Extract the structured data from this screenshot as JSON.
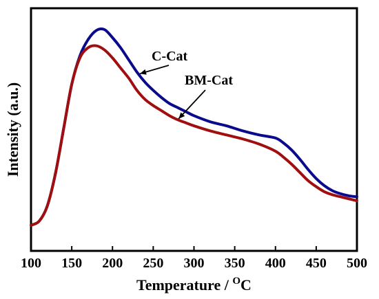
{
  "chart_data": {
    "type": "line",
    "xlabel": "Temperature / ",
    "xlabel_sup": "O",
    "xlabel_unit": "C",
    "ylabel": "Intensity (a.u.)",
    "xlim": [
      100,
      500
    ],
    "ylim": [
      0,
      1
    ],
    "xticks": [
      100,
      150,
      200,
      250,
      300,
      350,
      400,
      450,
      500
    ],
    "y_tick_labels": false,
    "grid": false,
    "series": [
      {
        "name": "C-Cat",
        "color": "#0a0a8c",
        "x": [
          100,
          110,
          120,
          130,
          140,
          150,
          160,
          170,
          180,
          190,
          200,
          210,
          220,
          230,
          240,
          250,
          260,
          270,
          280,
          290,
          300,
          320,
          340,
          360,
          380,
          400,
          410,
          420,
          430,
          440,
          450,
          460,
          470,
          480,
          490,
          500
        ],
        "y": [
          0.025,
          0.045,
          0.12,
          0.28,
          0.5,
          0.72,
          0.86,
          0.94,
          0.985,
          0.99,
          0.95,
          0.9,
          0.84,
          0.78,
          0.73,
          0.69,
          0.655,
          0.625,
          0.605,
          0.585,
          0.565,
          0.535,
          0.515,
          0.49,
          0.47,
          0.455,
          0.43,
          0.395,
          0.35,
          0.3,
          0.255,
          0.22,
          0.195,
          0.18,
          0.17,
          0.165
        ]
      },
      {
        "name": "BM-Cat",
        "color": "#a00f0f",
        "x": [
          100,
          110,
          120,
          130,
          140,
          150,
          160,
          170,
          180,
          190,
          200,
          210,
          220,
          230,
          240,
          250,
          260,
          270,
          280,
          290,
          300,
          320,
          340,
          360,
          380,
          400,
          410,
          420,
          430,
          440,
          450,
          460,
          470,
          480,
          490,
          500
        ],
        "y": [
          0.025,
          0.045,
          0.12,
          0.28,
          0.5,
          0.72,
          0.85,
          0.9,
          0.91,
          0.89,
          0.85,
          0.8,
          0.75,
          0.69,
          0.645,
          0.615,
          0.59,
          0.565,
          0.545,
          0.53,
          0.515,
          0.49,
          0.47,
          0.45,
          0.425,
          0.39,
          0.36,
          0.325,
          0.285,
          0.245,
          0.215,
          0.19,
          0.175,
          0.165,
          0.155,
          0.145
        ]
      }
    ],
    "annotations": [
      {
        "text": "C-Cat",
        "target_series": "C-Cat",
        "target_x": 232
      },
      {
        "text": "BM-Cat",
        "target_series": "BM-Cat",
        "target_x": 280
      }
    ]
  }
}
